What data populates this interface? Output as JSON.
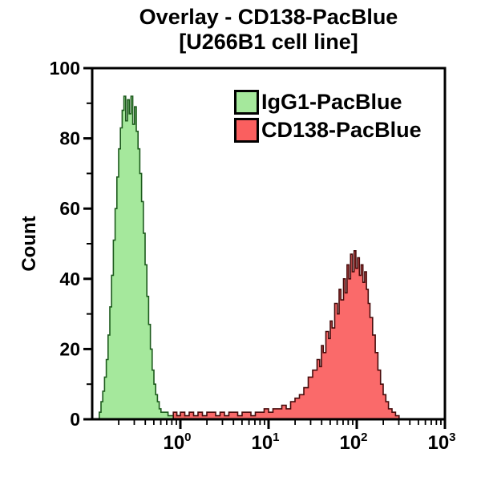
{
  "figure": {
    "title_line1": "Overlay - CD138-PacBlue",
    "title_line2": "[U266B1 cell line]"
  },
  "chart_data": {
    "type": "area",
    "subtype": "flow-cytometry-histogram-overlay",
    "title": "Overlay - CD138-PacBlue [U266B1 cell line]",
    "xlabel": "",
    "ylabel": "Count",
    "x_scale": "log10",
    "x_range_log10": [
      -1,
      3
    ],
    "y_range": [
      0,
      100
    ],
    "grid": false,
    "axis_color": "#000000",
    "y_major_ticks": [
      0,
      20,
      40,
      60,
      80,
      100
    ],
    "y_minor_ticks": [
      10,
      30,
      50,
      70,
      90
    ],
    "x_major_ticks": [
      {
        "log10": 0,
        "label_base": "10",
        "label_exp": "0"
      },
      {
        "log10": 1,
        "label_base": "10",
        "label_exp": "1"
      },
      {
        "log10": 2,
        "label_base": "10",
        "label_exp": "2"
      },
      {
        "log10": 3,
        "label_base": "10",
        "label_exp": "3"
      }
    ],
    "legend": {
      "position": "top-right-inside"
    },
    "series": [
      {
        "name": "IgG1-PacBlue",
        "fill": "#a5e89c",
        "stroke": "#1c5a1c",
        "fill_opacity": 1,
        "peak_value_approx": 0.28,
        "peak_count_approx": 92,
        "points": [
          [
            -0.94,
            0
          ],
          [
            -0.92,
            2
          ],
          [
            -0.9,
            5
          ],
          [
            -0.88,
            8
          ],
          [
            -0.86,
            12
          ],
          [
            -0.84,
            17
          ],
          [
            -0.82,
            24
          ],
          [
            -0.8,
            32
          ],
          [
            -0.78,
            41
          ],
          [
            -0.76,
            51
          ],
          [
            -0.74,
            60
          ],
          [
            -0.72,
            69
          ],
          [
            -0.7,
            77
          ],
          [
            -0.68,
            83
          ],
          [
            -0.66,
            88
          ],
          [
            -0.64,
            92
          ],
          [
            -0.62,
            85
          ],
          [
            -0.6,
            91
          ],
          [
            -0.58,
            87
          ],
          [
            -0.56,
            92
          ],
          [
            -0.54,
            84
          ],
          [
            -0.52,
            89
          ],
          [
            -0.5,
            82
          ],
          [
            -0.48,
            77
          ],
          [
            -0.46,
            70
          ],
          [
            -0.44,
            62
          ],
          [
            -0.42,
            53
          ],
          [
            -0.4,
            44
          ],
          [
            -0.38,
            35
          ],
          [
            -0.36,
            27
          ],
          [
            -0.34,
            20
          ],
          [
            -0.32,
            14
          ],
          [
            -0.3,
            10
          ],
          [
            -0.28,
            7
          ],
          [
            -0.26,
            5
          ],
          [
            -0.24,
            3
          ],
          [
            -0.22,
            2
          ],
          [
            -0.18,
            2
          ],
          [
            -0.14,
            1
          ],
          [
            -0.1,
            1
          ],
          [
            -0.05,
            1
          ],
          [
            0.0,
            1
          ],
          [
            0.05,
            0
          ]
        ]
      },
      {
        "name": "CD138-PacBlue",
        "fill": "#fa5f5f",
        "stroke": "#470b0b",
        "fill_opacity": 0.93,
        "peak_value_approx": 95,
        "peak_count_approx": 48,
        "points": [
          [
            -0.12,
            0
          ],
          [
            -0.08,
            2
          ],
          [
            -0.04,
            1
          ],
          [
            0.0,
            2
          ],
          [
            0.05,
            1
          ],
          [
            0.1,
            2
          ],
          [
            0.15,
            1
          ],
          [
            0.2,
            2
          ],
          [
            0.25,
            1
          ],
          [
            0.3,
            2
          ],
          [
            0.35,
            2
          ],
          [
            0.4,
            1
          ],
          [
            0.45,
            2
          ],
          [
            0.5,
            1
          ],
          [
            0.55,
            2
          ],
          [
            0.6,
            2
          ],
          [
            0.65,
            1
          ],
          [
            0.7,
            2
          ],
          [
            0.75,
            2
          ],
          [
            0.8,
            1
          ],
          [
            0.85,
            2
          ],
          [
            0.9,
            2
          ],
          [
            0.95,
            3
          ],
          [
            1.0,
            2
          ],
          [
            1.05,
            3
          ],
          [
            1.1,
            3
          ],
          [
            1.15,
            4
          ],
          [
            1.2,
            3
          ],
          [
            1.25,
            5
          ],
          [
            1.3,
            6
          ],
          [
            1.35,
            7
          ],
          [
            1.4,
            9
          ],
          [
            1.45,
            12
          ],
          [
            1.5,
            14
          ],
          [
            1.55,
            17
          ],
          [
            1.58,
            15
          ],
          [
            1.6,
            21
          ],
          [
            1.62,
            19
          ],
          [
            1.65,
            25
          ],
          [
            1.68,
            23
          ],
          [
            1.7,
            28
          ],
          [
            1.72,
            26
          ],
          [
            1.75,
            33
          ],
          [
            1.78,
            30
          ],
          [
            1.8,
            37
          ],
          [
            1.82,
            34
          ],
          [
            1.85,
            40
          ],
          [
            1.87,
            36
          ],
          [
            1.89,
            44
          ],
          [
            1.91,
            40
          ],
          [
            1.93,
            47
          ],
          [
            1.95,
            42
          ],
          [
            1.97,
            48
          ],
          [
            1.99,
            43
          ],
          [
            2.01,
            46
          ],
          [
            2.03,
            41
          ],
          [
            2.05,
            44
          ],
          [
            2.07,
            39
          ],
          [
            2.09,
            42
          ],
          [
            2.11,
            37
          ],
          [
            2.13,
            33
          ],
          [
            2.15,
            29
          ],
          [
            2.18,
            24
          ],
          [
            2.21,
            19
          ],
          [
            2.24,
            14
          ],
          [
            2.27,
            10
          ],
          [
            2.3,
            7
          ],
          [
            2.33,
            5
          ],
          [
            2.36,
            3
          ],
          [
            2.4,
            2
          ],
          [
            2.44,
            1
          ],
          [
            2.48,
            0
          ]
        ]
      }
    ]
  }
}
